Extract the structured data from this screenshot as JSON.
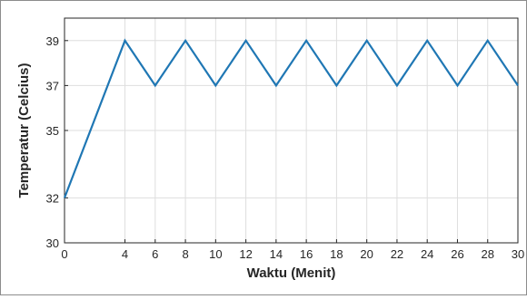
{
  "chart_data": {
    "type": "line",
    "title": "",
    "xlabel": "Waktu (Menit)",
    "ylabel": "Temperatur (Celcius)",
    "xlim": [
      0,
      30
    ],
    "ylim": [
      30,
      40
    ],
    "x_ticks": [
      0,
      4,
      6,
      8,
      10,
      12,
      14,
      16,
      18,
      20,
      22,
      24,
      26,
      28,
      30
    ],
    "y_ticks": [
      30,
      32,
      35,
      37,
      39
    ],
    "grid": true,
    "series": [
      {
        "color": "#1f77b4",
        "x": [
          0,
          4,
          6,
          8,
          10,
          12,
          14,
          16,
          18,
          20,
          22,
          24,
          26,
          28,
          30
        ],
        "y": [
          32,
          39,
          37,
          39,
          37,
          39,
          37,
          39,
          37,
          39,
          37,
          39,
          37,
          39,
          37
        ]
      }
    ]
  }
}
